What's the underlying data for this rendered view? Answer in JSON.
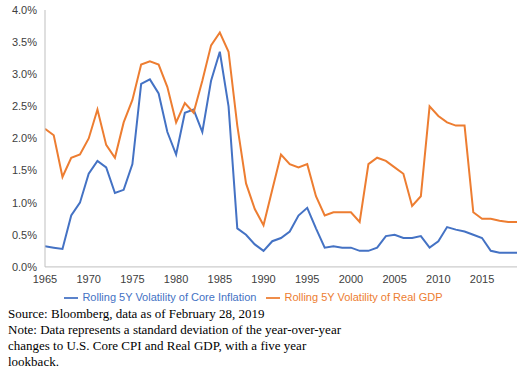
{
  "chart_data": {
    "type": "line",
    "legend": "bottom",
    "grid": false,
    "x": [
      1965,
      1966,
      1967,
      1968,
      1969,
      1970,
      1971,
      1972,
      1973,
      1974,
      1975,
      1976,
      1977,
      1978,
      1979,
      1980,
      1981,
      1982,
      1983,
      1984,
      1985,
      1986,
      1987,
      1988,
      1989,
      1990,
      1991,
      1992,
      1993,
      1994,
      1995,
      1996,
      1997,
      1998,
      1999,
      2000,
      2001,
      2002,
      2003,
      2004,
      2005,
      2006,
      2007,
      2008,
      2009,
      2010,
      2011,
      2012,
      2013,
      2014,
      2015,
      2016,
      2017,
      2018,
      2019
    ],
    "xlim": [
      1965,
      2019
    ],
    "xticks": [
      1965,
      1970,
      1975,
      1980,
      1985,
      1990,
      1995,
      2000,
      2005,
      2010,
      2015
    ],
    "ylim": [
      0,
      4
    ],
    "yticks": [
      {
        "value": 0,
        "label": "0.0%"
      },
      {
        "value": 0.5,
        "label": "0.5%"
      },
      {
        "value": 1,
        "label": "1.0%"
      },
      {
        "value": 1.5,
        "label": "1.5%"
      },
      {
        "value": 2,
        "label": "2.0%"
      },
      {
        "value": 2.5,
        "label": "2.5%"
      },
      {
        "value": 3,
        "label": "3.0%"
      },
      {
        "value": 3.5,
        "label": "3.5%"
      },
      {
        "value": 4,
        "label": "4.0%"
      }
    ],
    "series": [
      {
        "name": "Rolling 5Y Volatility of Core Inflation",
        "color": "#4472c4",
        "values": [
          0.32,
          0.3,
          0.28,
          0.8,
          1.0,
          1.45,
          1.65,
          1.55,
          1.15,
          1.2,
          1.6,
          2.85,
          2.92,
          2.7,
          2.1,
          1.75,
          2.4,
          2.45,
          2.1,
          2.9,
          3.35,
          2.5,
          0.6,
          0.5,
          0.35,
          0.25,
          0.4,
          0.45,
          0.55,
          0.8,
          0.92,
          0.6,
          0.3,
          0.32,
          0.3,
          0.3,
          0.25,
          0.25,
          0.3,
          0.48,
          0.5,
          0.45,
          0.45,
          0.48,
          0.3,
          0.4,
          0.62,
          0.58,
          0.55,
          0.5,
          0.45,
          0.25,
          0.22,
          0.22,
          0.22
        ]
      },
      {
        "name": "Rolling 5Y Volatility of Real GDP",
        "color": "#ed7d31",
        "values": [
          2.15,
          2.05,
          1.4,
          1.7,
          1.75,
          2.0,
          2.45,
          1.9,
          1.7,
          2.25,
          2.6,
          3.15,
          3.2,
          3.15,
          2.8,
          2.25,
          2.55,
          2.4,
          2.9,
          3.45,
          3.65,
          3.35,
          2.2,
          1.3,
          0.9,
          0.65,
          1.2,
          1.75,
          1.6,
          1.55,
          1.6,
          1.1,
          0.8,
          0.85,
          0.85,
          0.85,
          0.7,
          1.6,
          1.7,
          1.65,
          1.55,
          1.45,
          0.95,
          1.1,
          2.5,
          2.35,
          2.25,
          2.2,
          2.2,
          0.85,
          0.75,
          0.75,
          0.72,
          0.7,
          0.7
        ]
      }
    ],
    "annotations": [
      "Source: Bloomberg, data as of February 28, 2019",
      "Note: Data represents a standard deviation of the year-over-year changes to U.S. Core CPI and Real GDP, with a five year lookback."
    ]
  }
}
